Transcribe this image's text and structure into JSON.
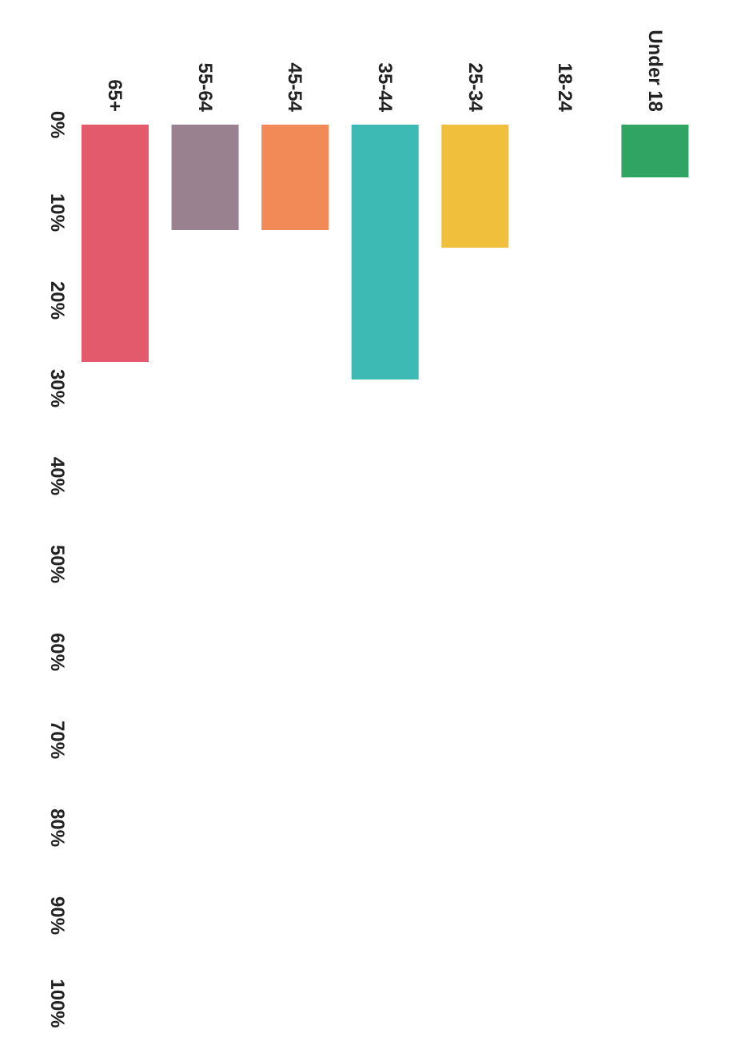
{
  "chart_data": {
    "type": "bar",
    "categories": [
      "65+",
      "55-64",
      "45-54",
      "35-44",
      "25-34",
      "18-24",
      "Under 18"
    ],
    "values": [
      27,
      12,
      12,
      29,
      14,
      0,
      6
    ],
    "colors": [
      "#e25a6b",
      "#9a8190",
      "#f28a57",
      "#3dbab4",
      "#f0bf3c",
      "#9aa0a6",
      "#2fa463"
    ],
    "ylim": [
      100,
      0
    ],
    "yticks": [
      {
        "value": 0,
        "label": "0%"
      },
      {
        "value": 10,
        "label": "10%"
      },
      {
        "value": 20,
        "label": "20%"
      },
      {
        "value": 30,
        "label": "30%"
      },
      {
        "value": 40,
        "label": "40%"
      },
      {
        "value": 50,
        "label": "50%"
      },
      {
        "value": 60,
        "label": "60%"
      },
      {
        "value": 70,
        "label": "70%"
      },
      {
        "value": 80,
        "label": "80%"
      },
      {
        "value": 90,
        "label": "90%"
      },
      {
        "value": 100,
        "label": "100%"
      }
    ],
    "grid": false,
    "legend": false
  }
}
